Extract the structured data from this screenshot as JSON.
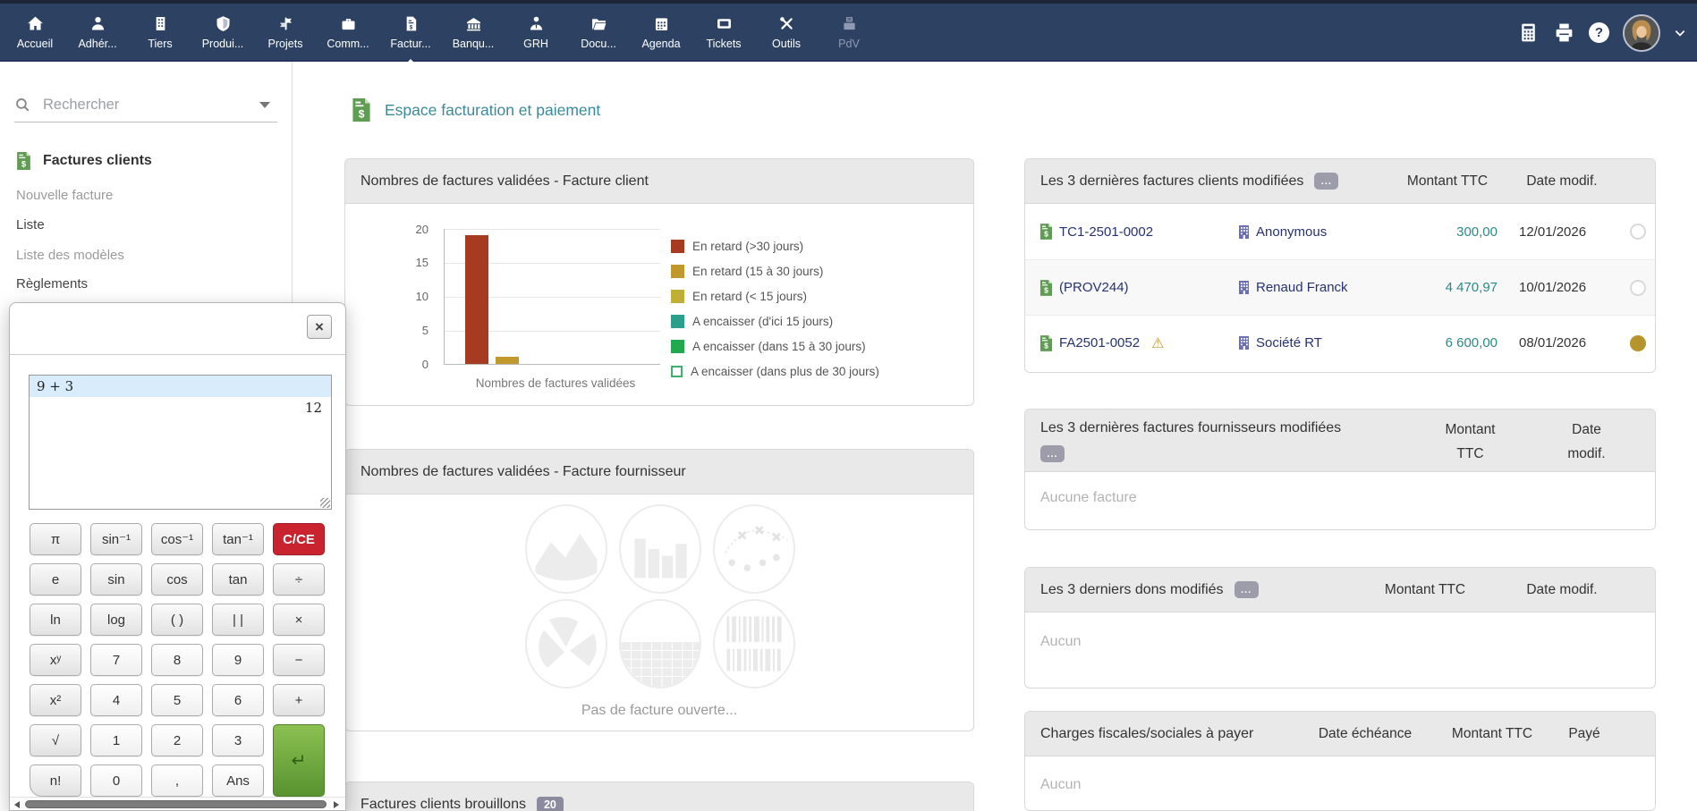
{
  "topnav": {
    "items": [
      {
        "label": "Accueil"
      },
      {
        "label": "Adhér..."
      },
      {
        "label": "Tiers"
      },
      {
        "label": "Produi..."
      },
      {
        "label": "Projets"
      },
      {
        "label": "Comm..."
      },
      {
        "label": "Factur..."
      },
      {
        "label": "Banqu..."
      },
      {
        "label": "GRH"
      },
      {
        "label": "Docu..."
      },
      {
        "label": "Agenda"
      },
      {
        "label": "Tickets"
      },
      {
        "label": "Outils"
      },
      {
        "label": "PdV"
      }
    ]
  },
  "sidebar": {
    "search_placeholder": "Rechercher",
    "section_title": "Factures clients",
    "items": [
      {
        "label": "Nouvelle facture"
      },
      {
        "label": "Liste"
      },
      {
        "label": "Liste des modèles"
      },
      {
        "label": "Règlements"
      }
    ]
  },
  "calculator": {
    "display_expression": "9 + 3",
    "display_result": "12",
    "close_label": "×",
    "keys": [
      "π",
      "sin⁻¹",
      "cos⁻¹",
      "tan⁻¹",
      "C/CE",
      "e",
      "sin",
      "cos",
      "tan",
      "÷",
      "ln",
      "log",
      "( )",
      "| |",
      "×",
      "xʸ",
      "7",
      "8",
      "9",
      "−",
      "x²",
      "4",
      "5",
      "6",
      "+",
      "√",
      "1",
      "2",
      "3",
      "↵",
      "n!",
      "0",
      ",",
      "Ans"
    ]
  },
  "main": {
    "page_title": "Espace facturation et paiement",
    "chart_box_title": "Nombres de factures validées - Facture client",
    "supplier_box_title": "Nombres de factures validées - Facture fournisseur",
    "supplier_empty": "Pas de facture ouverte...",
    "draft_box_title": "Factures clients brouillons",
    "draft_badge": "20"
  },
  "chart_data": {
    "type": "bar",
    "title": "Nombres de factures validées - Facture client",
    "xlabel": "Nombres de factures validées",
    "ylabel": "",
    "ylim": [
      0,
      20
    ],
    "yticks": [
      0,
      5,
      10,
      15,
      20
    ],
    "grid": true,
    "legend_position": "right",
    "series": [
      {
        "name": "En retard (>30 jours)",
        "value": 19,
        "color": "#a63b21"
      },
      {
        "name": "En retard (15 à 30 jours)",
        "value": 1,
        "color": "#c0982b"
      },
      {
        "name": "En retard (< 15 jours)",
        "value": 0,
        "color": "#bfaf37"
      },
      {
        "name": "A encaisser (d'ici 15 jours)",
        "value": 0,
        "color": "#2aa08c"
      },
      {
        "name": "A encaisser (dans 15 à 30 jours)",
        "value": 0,
        "color": "#22a84e"
      },
      {
        "name": "A encaisser (dans plus de 30 jours)",
        "value": 0,
        "color": "#ffffff",
        "border_color": "#3fae6e"
      }
    ]
  },
  "right_panel": {
    "customer_box": {
      "title": "Les 3 dernières factures clients modifiées",
      "more_label": "...",
      "col_amount": "Montant TTC",
      "col_date": "Date modif.",
      "warning_icon": "⚠",
      "rows": [
        {
          "ref": "TC1-2501-0002",
          "company": "Anonymous",
          "amount": "300,00",
          "date": "12/01/2026",
          "status": "empty"
        },
        {
          "ref": "(PROV244)",
          "company": "Renaud Franck",
          "amount": "4 470,97",
          "date": "10/01/2026",
          "status": "empty"
        },
        {
          "ref": "FA2501-0052",
          "company": "Société RT",
          "amount": "6 600,00",
          "date": "08/01/2026",
          "status": "filled"
        }
      ]
    },
    "supplier_box": {
      "title": "Les 3 dernières factures fournisseurs modifiées",
      "more_label": "...",
      "col_amount": "Montant\nTTC",
      "col_date": "Date\nmodif.",
      "empty": "Aucune facture"
    },
    "donation_box": {
      "title": "Les 3 derniers dons modifiés",
      "more_label": "...",
      "col_amount": "Montant TTC",
      "col_date": "Date modif.",
      "empty": "Aucun"
    },
    "charges_box": {
      "title": "Charges fiscales/sociales à payer",
      "col_due": "Date échéance",
      "col_amount": "Montant TTC",
      "col_paid": "Payé",
      "empty": "Aucun"
    }
  }
}
